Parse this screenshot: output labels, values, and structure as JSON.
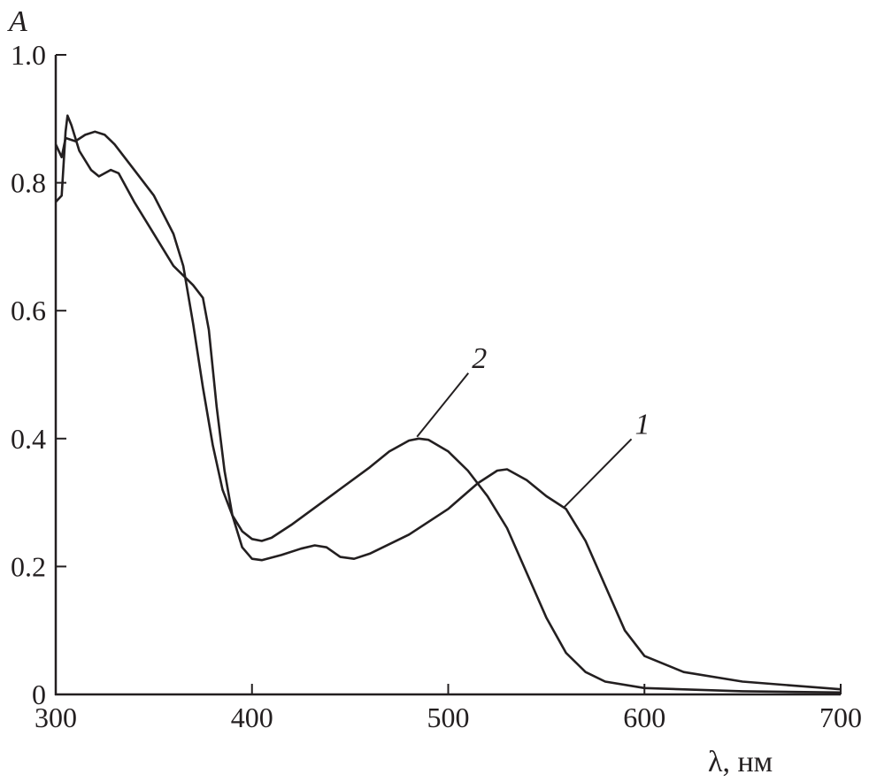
{
  "chart_data": {
    "type": "line",
    "title": "",
    "xlabel": "λ, нм",
    "ylabel": "A",
    "xlim": [
      300,
      700
    ],
    "ylim": [
      0,
      1.0
    ],
    "xticks": [
      300,
      400,
      500,
      600,
      700
    ],
    "xtick_labels": [
      "300",
      "400",
      "500",
      "600",
      "700"
    ],
    "yticks": [
      0,
      0.2,
      0.4,
      0.6,
      0.8,
      1.0
    ],
    "ytick_labels": [
      "0",
      "0.2",
      "0.4",
      "0.6",
      "0.8",
      "1.0"
    ],
    "grid": false,
    "series": [
      {
        "name": "1",
        "annotation_at": [
          560,
          0.29
        ],
        "x": [
          300,
          303,
          305,
          306,
          308,
          312,
          318,
          322,
          328,
          332,
          340,
          350,
          360,
          365,
          370,
          375,
          378,
          382,
          386,
          390,
          395,
          400,
          405,
          415,
          425,
          432,
          438,
          445,
          452,
          460,
          480,
          500,
          515,
          525,
          530,
          540,
          550,
          560,
          570,
          580,
          590,
          600,
          620,
          650,
          700
        ],
        "y": [
          0.77,
          0.78,
          0.88,
          0.905,
          0.89,
          0.85,
          0.82,
          0.81,
          0.82,
          0.815,
          0.77,
          0.72,
          0.67,
          0.655,
          0.64,
          0.62,
          0.57,
          0.45,
          0.35,
          0.28,
          0.23,
          0.212,
          0.21,
          0.218,
          0.228,
          0.233,
          0.23,
          0.215,
          0.212,
          0.22,
          0.25,
          0.29,
          0.33,
          0.35,
          0.352,
          0.335,
          0.31,
          0.29,
          0.24,
          0.17,
          0.1,
          0.06,
          0.035,
          0.02,
          0.008
        ]
      },
      {
        "name": "2",
        "annotation_at": [
          485,
          0.4
        ],
        "x": [
          300,
          303,
          305,
          310,
          315,
          320,
          325,
          330,
          340,
          350,
          360,
          365,
          370,
          375,
          380,
          385,
          390,
          395,
          400,
          405,
          410,
          420,
          440,
          460,
          470,
          480,
          485,
          490,
          500,
          510,
          520,
          530,
          540,
          550,
          560,
          570,
          580,
          600,
          650,
          700
        ],
        "y": [
          0.86,
          0.84,
          0.87,
          0.865,
          0.875,
          0.88,
          0.875,
          0.86,
          0.82,
          0.78,
          0.72,
          0.67,
          0.58,
          0.48,
          0.39,
          0.32,
          0.28,
          0.255,
          0.243,
          0.24,
          0.245,
          0.265,
          0.31,
          0.355,
          0.38,
          0.397,
          0.4,
          0.398,
          0.38,
          0.35,
          0.31,
          0.26,
          0.19,
          0.12,
          0.065,
          0.035,
          0.02,
          0.01,
          0.005,
          0.003
        ]
      }
    ]
  }
}
